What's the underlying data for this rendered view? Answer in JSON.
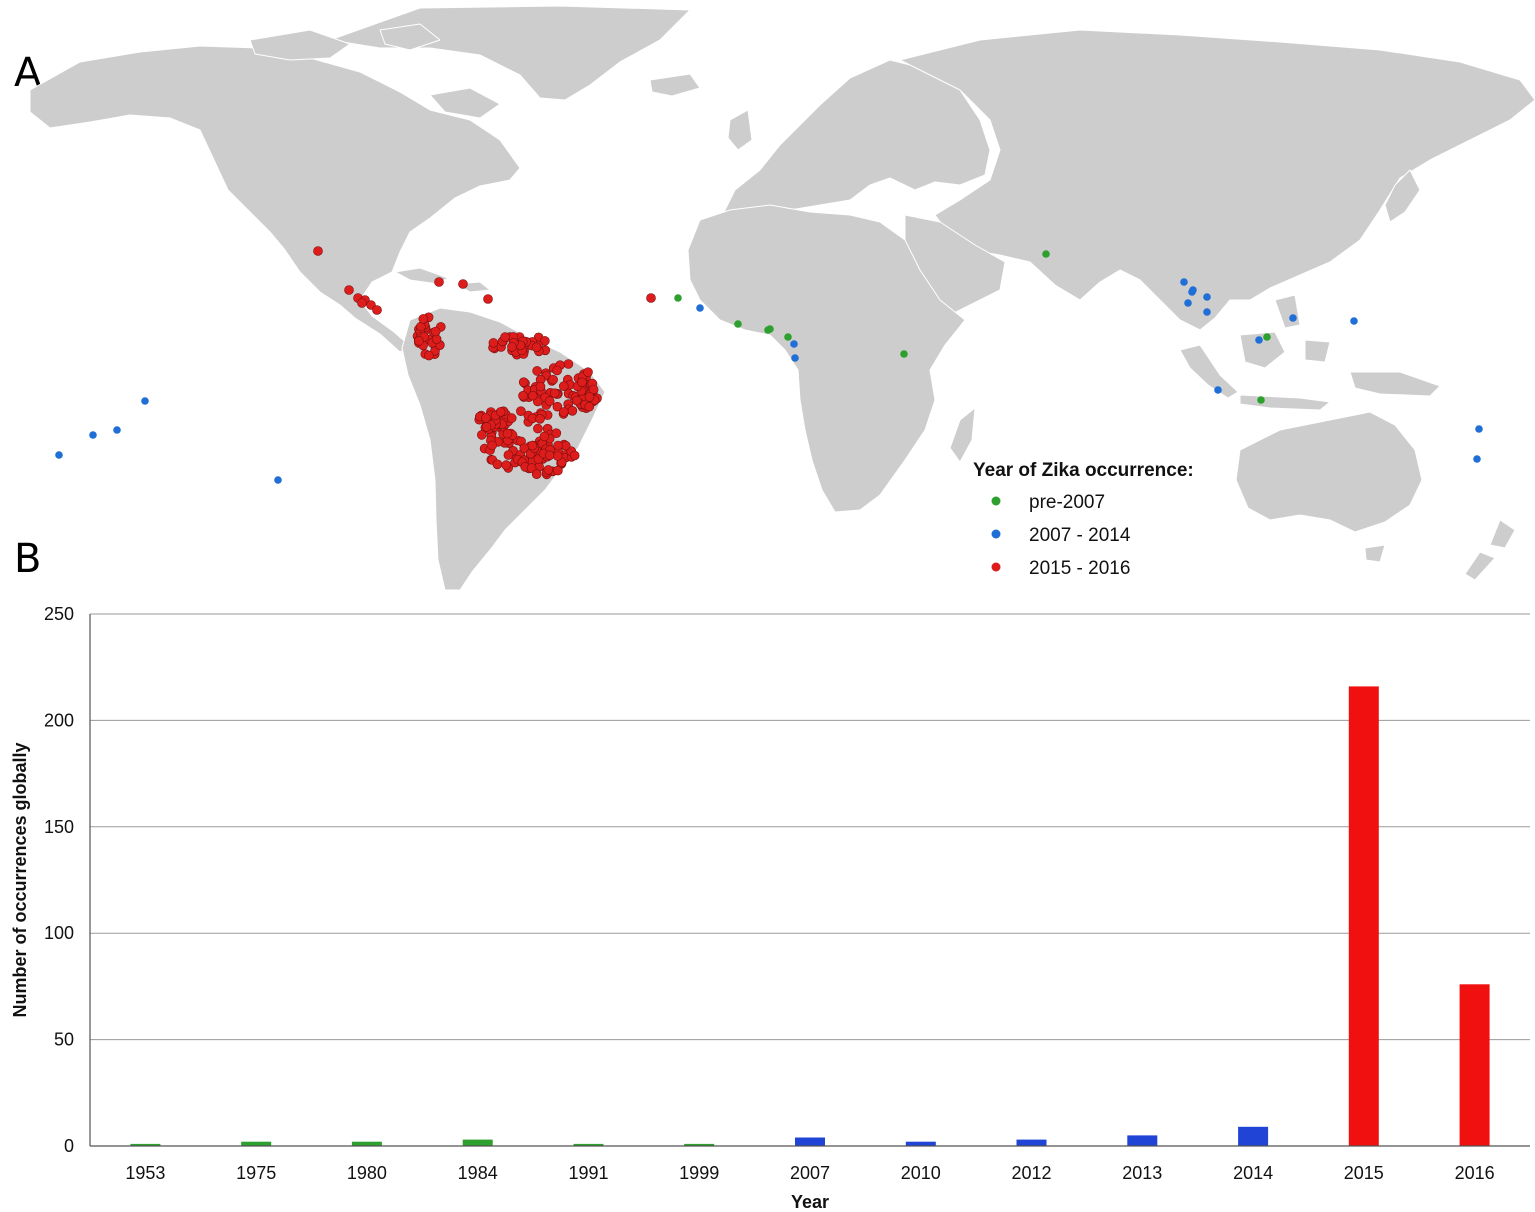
{
  "panels": {
    "a_label": "A",
    "b_label": "B"
  },
  "map": {
    "legend_title": "Year of Zika occurrence:",
    "legend": [
      {
        "label": "pre-2007",
        "color": "#2ea02e"
      },
      {
        "label": "2007 - 2014",
        "color": "#1f6fd6"
      },
      {
        "label": "2015 - 2016",
        "color": "#dd1c1c"
      }
    ],
    "land_color": "#cdcdcd"
  },
  "chart_data": {
    "type": "bar",
    "categories": [
      "1953",
      "1975",
      "1980",
      "1984",
      "1991",
      "1999",
      "2007",
      "2010",
      "2012",
      "2013",
      "2014",
      "2015",
      "2016"
    ],
    "values": [
      1,
      2,
      2,
      3,
      1,
      1,
      4,
      2,
      3,
      5,
      9,
      216,
      76
    ],
    "bar_colors": [
      "#2ea02e",
      "#2ea02e",
      "#2ea02e",
      "#2ea02e",
      "#2ea02e",
      "#2ea02e",
      "#1f44d6",
      "#1f44d6",
      "#1f44d6",
      "#1f44d6",
      "#1f44d6",
      "#f01010",
      "#f01010"
    ],
    "xlabel": "Year",
    "ylabel": "Number  of occurrences  globally",
    "ylim": [
      0,
      250
    ],
    "yticks": [
      "0",
      "50",
      "100",
      "150",
      "200",
      "250"
    ],
    "grid": true
  }
}
